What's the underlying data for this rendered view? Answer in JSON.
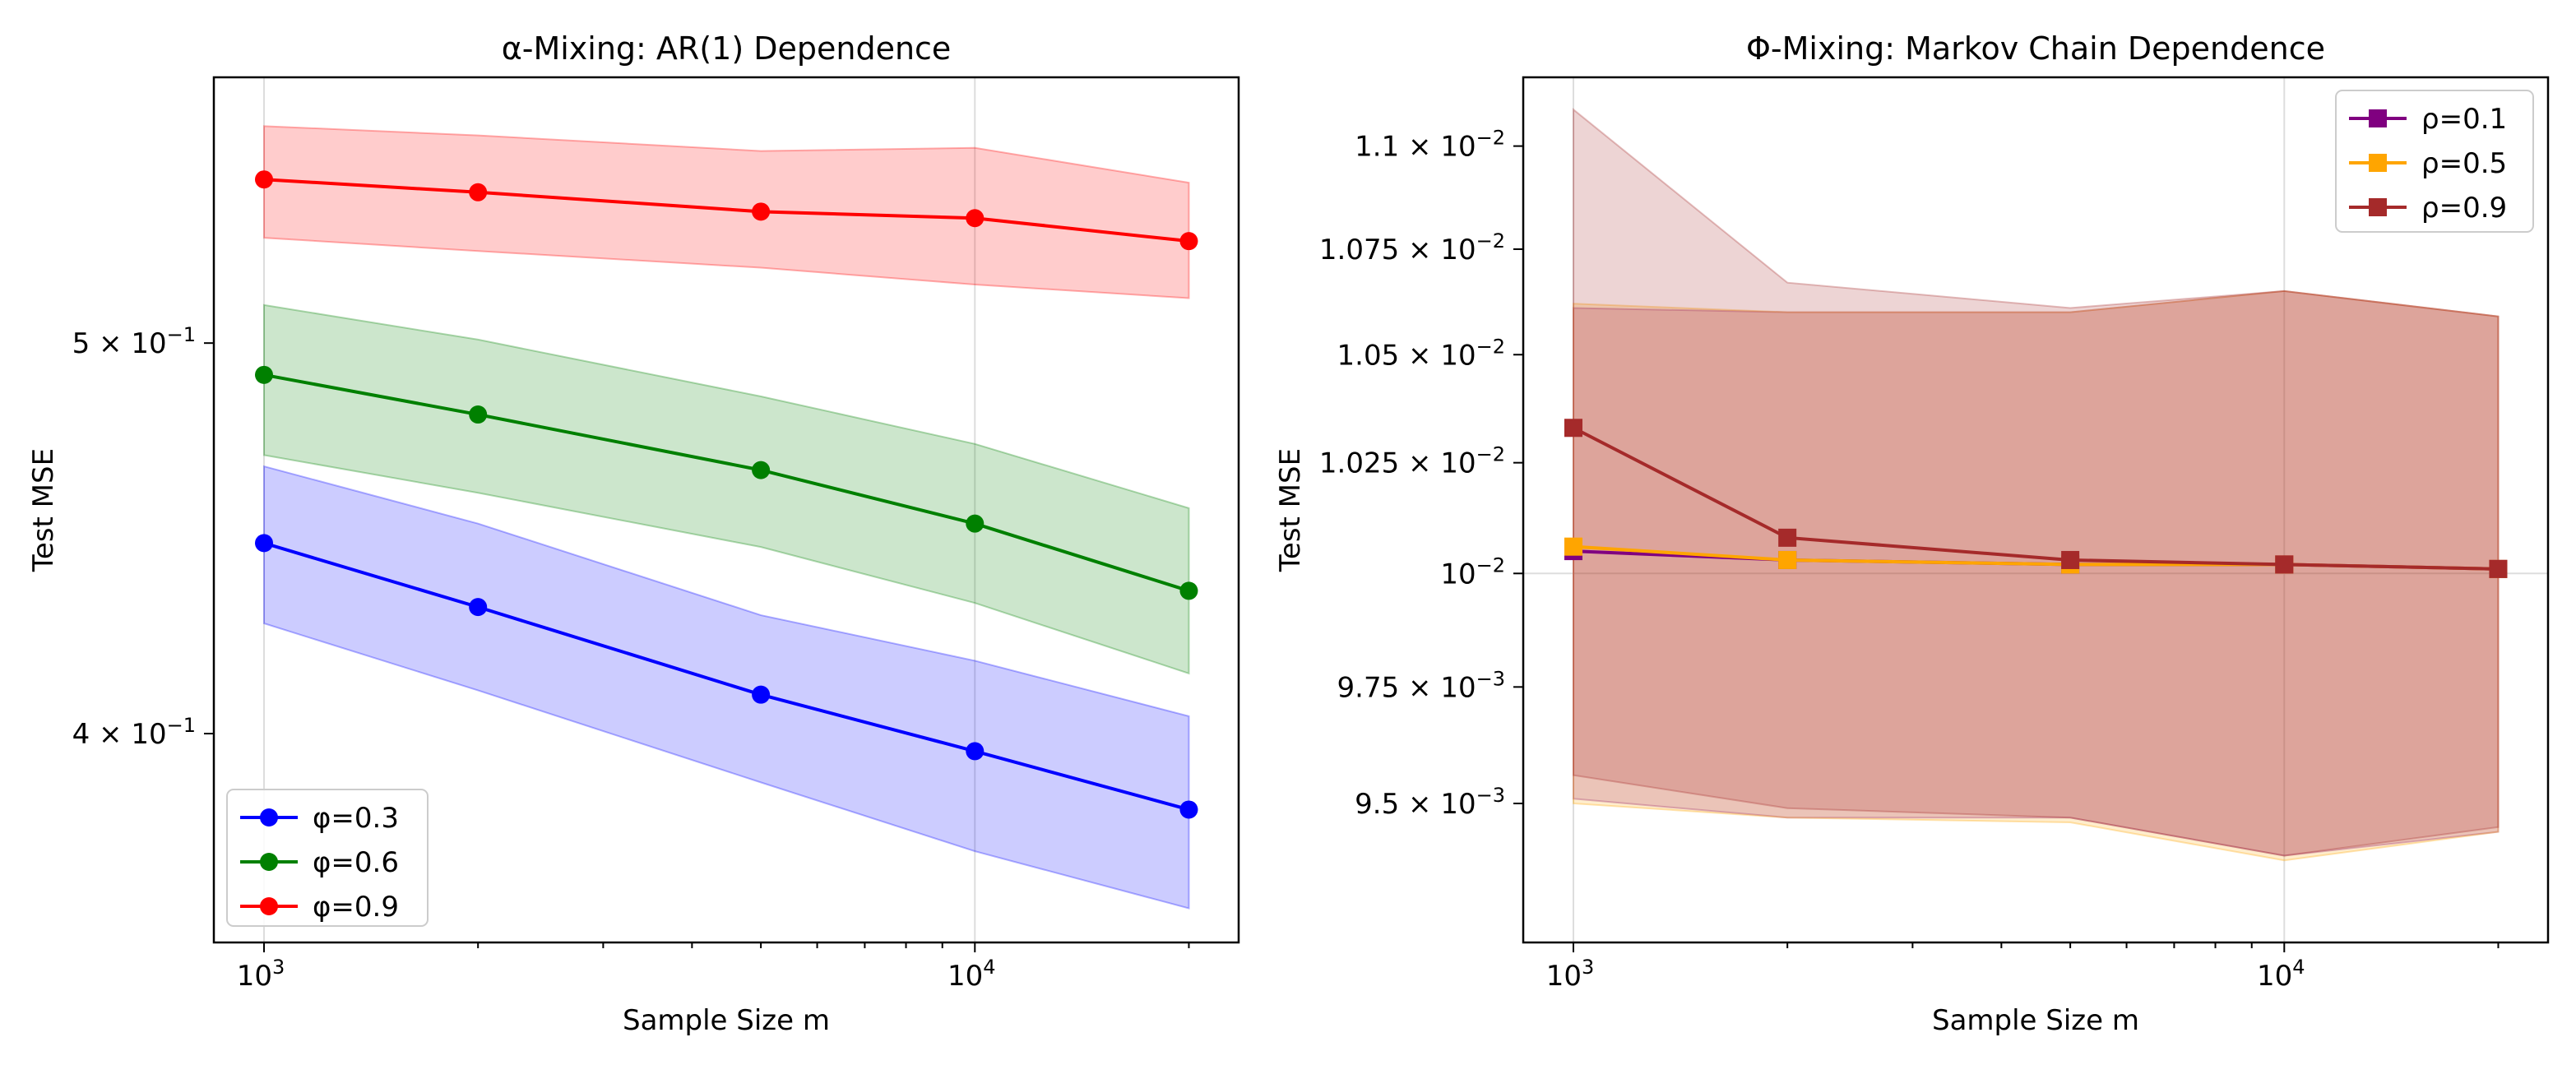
{
  "chart_data": [
    {
      "type": "line",
      "title": "α-Mixing: AR(1) Dependence",
      "xlabel": "Sample Size m",
      "ylabel": "Test MSE",
      "x_scale": "log",
      "y_scale": "log",
      "xlim": [
        850,
        23500
      ],
      "ylim": [
        0.355,
        0.582
      ],
      "xticks": [
        {
          "value": 1000,
          "base": "10",
          "exp": "3"
        },
        {
          "value": 10000,
          "base": "10",
          "exp": "4"
        }
      ],
      "yticks": [
        {
          "value": 0.4,
          "mantissa": "4",
          "base": "10",
          "exp": "−1"
        },
        {
          "value": 0.5,
          "mantissa": "5",
          "base": "10",
          "exp": "−1"
        }
      ],
      "grid": "vertical at major x ticks",
      "legend_position": "lower-left",
      "x": [
        1000,
        2000,
        5000,
        10000,
        20000
      ],
      "series": [
        {
          "name": "φ=0.3",
          "color": "#0000ff",
          "marker": "circle",
          "values": [
            0.446,
            0.43,
            0.409,
            0.396,
            0.383
          ],
          "lower": [
            0.426,
            0.41,
            0.389,
            0.374,
            0.362
          ],
          "upper": [
            0.466,
            0.451,
            0.428,
            0.417,
            0.404
          ]
        },
        {
          "name": "φ=0.6",
          "color": "#008000",
          "marker": "circle",
          "values": [
            0.491,
            0.48,
            0.465,
            0.451,
            0.434
          ],
          "lower": [
            0.469,
            0.459,
            0.445,
            0.431,
            0.414
          ],
          "upper": [
            0.511,
            0.501,
            0.485,
            0.472,
            0.455
          ]
        },
        {
          "name": "φ=0.9",
          "color": "#ff0000",
          "marker": "circle",
          "values": [
            0.549,
            0.545,
            0.539,
            0.537,
            0.53
          ],
          "lower": [
            0.531,
            0.527,
            0.522,
            0.517,
            0.513
          ],
          "upper": [
            0.566,
            0.563,
            0.558,
            0.559,
            0.548
          ]
        }
      ]
    },
    {
      "type": "line",
      "title": "Φ-Mixing: Markov Chain Dependence",
      "xlabel": "Sample Size m",
      "ylabel": "Test MSE",
      "x_scale": "log",
      "y_scale": "log",
      "xlim": [
        850,
        23500
      ],
      "ylim": [
        0.00921,
        0.01117
      ],
      "xticks": [
        {
          "value": 1000,
          "base": "10",
          "exp": "3"
        },
        {
          "value": 10000,
          "base": "10",
          "exp": "4"
        }
      ],
      "yticks": [
        {
          "value": 0.0095,
          "mantissa": "9.5",
          "base": "10",
          "exp": "−3"
        },
        {
          "value": 0.00975,
          "mantissa": "9.75",
          "base": "10",
          "exp": "−3"
        },
        {
          "value": 0.01,
          "mantissa": "",
          "base": "10",
          "exp": "−2"
        },
        {
          "value": 0.01025,
          "mantissa": "1.025",
          "base": "10",
          "exp": "−2"
        },
        {
          "value": 0.0105,
          "mantissa": "1.05",
          "base": "10",
          "exp": "−2"
        },
        {
          "value": 0.01075,
          "mantissa": "1.075",
          "base": "10",
          "exp": "−2"
        },
        {
          "value": 0.011,
          "mantissa": "1.1",
          "base": "10",
          "exp": "−2"
        }
      ],
      "grid": "at major ticks",
      "legend_position": "upper-right",
      "x": [
        1000,
        2000,
        5000,
        10000,
        20000
      ],
      "series": [
        {
          "name": "ρ=0.1",
          "color": "#800080",
          "marker": "square",
          "values": [
            0.01005,
            0.01003,
            0.01002,
            0.01002,
            0.01001
          ],
          "lower": [
            0.00951,
            0.00947,
            0.00947,
            0.00939,
            0.00944
          ],
          "upper": [
            0.01061,
            0.0106,
            0.0106,
            0.01065,
            0.01059
          ]
        },
        {
          "name": "ρ=0.5",
          "color": "#ffa500",
          "marker": "square",
          "values": [
            0.01006,
            0.01003,
            0.01002,
            0.01002,
            0.01001
          ],
          "lower": [
            0.0095,
            0.00947,
            0.00946,
            0.00938,
            0.00944
          ],
          "upper": [
            0.01062,
            0.0106,
            0.0106,
            0.01065,
            0.01059
          ]
        },
        {
          "name": "ρ=0.9",
          "color": "#a52a2a",
          "marker": "square",
          "values": [
            0.01033,
            0.01008,
            0.01003,
            0.01002,
            0.01001
          ],
          "lower": [
            0.00956,
            0.00949,
            0.00947,
            0.00939,
            0.00945
          ],
          "upper": [
            0.01109,
            0.01067,
            0.01061,
            0.01065,
            0.01059
          ]
        }
      ]
    }
  ]
}
